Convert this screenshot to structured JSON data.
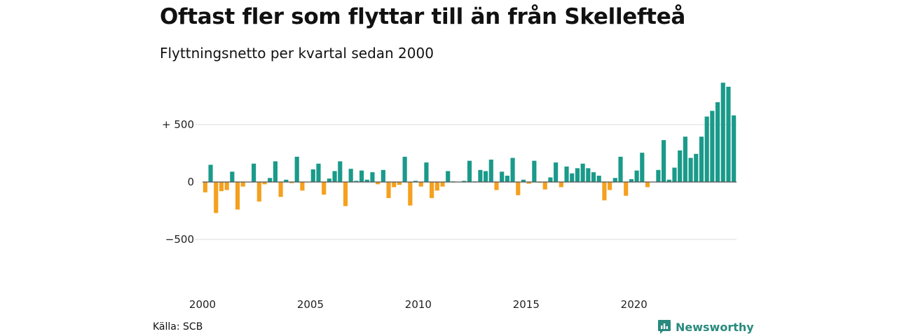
{
  "title": "Oftast fler som flyttar till än från Skellefteå",
  "subtitle": "Flyttningsnetto per kvartal sedan 2000",
  "source": "Källa: SCB",
  "brand": "Newsworthy",
  "colors": {
    "positive": "#1a9a8a",
    "negative": "#f5a01e",
    "grid": "#dddddd",
    "brand": "#2a8a7e"
  },
  "chart_data": {
    "type": "bar",
    "x_start": "2000 Q1",
    "x_ticks": [
      "2000",
      "2005",
      "2010",
      "2015",
      "2020"
    ],
    "y_ticks": [
      {
        "value": 500,
        "label": "+ 500"
      },
      {
        "value": 0,
        "label": "0"
      },
      {
        "value": -500,
        "label": "−500"
      }
    ],
    "ylim": [
      -870,
      870
    ],
    "grid": true,
    "values": [
      -90,
      150,
      -270,
      -80,
      -70,
      90,
      -240,
      -40,
      0,
      160,
      -170,
      -20,
      35,
      180,
      -130,
      20,
      -10,
      220,
      -75,
      0,
      110,
      160,
      -110,
      30,
      95,
      180,
      -210,
      115,
      10,
      100,
      20,
      85,
      -20,
      105,
      -140,
      -45,
      -25,
      220,
      -205,
      10,
      -40,
      170,
      -140,
      -75,
      -40,
      95,
      5,
      0,
      10,
      185,
      5,
      105,
      95,
      195,
      -70,
      90,
      55,
      210,
      -115,
      20,
      -15,
      185,
      -5,
      -65,
      40,
      170,
      -45,
      135,
      75,
      120,
      160,
      120,
      85,
      55,
      -160,
      -70,
      35,
      220,
      -120,
      25,
      100,
      255,
      -45,
      0,
      105,
      365,
      20,
      125,
      275,
      395,
      210,
      245,
      395,
      570,
      620,
      695,
      865,
      830,
      580
    ]
  }
}
